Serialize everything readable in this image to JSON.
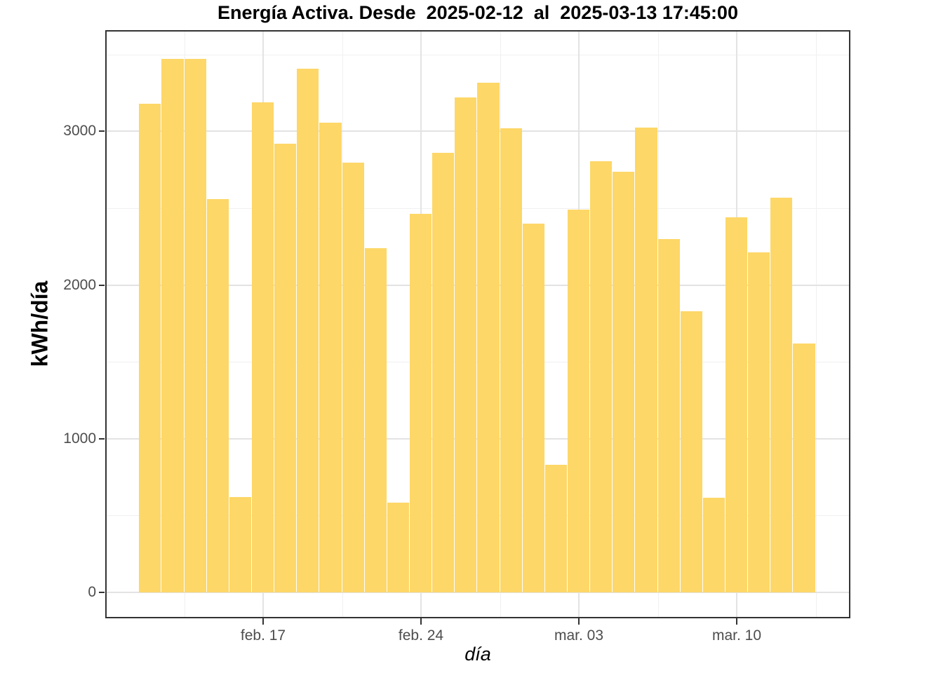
{
  "title": "Energía Activa. Desde  2025-02-12  al  2025-03-13 17:45:00",
  "colors": {
    "bar_fill": "#FDD767",
    "panel_border": "#333333",
    "grid_major": "#E3E3E3",
    "grid_minor": "#F0F0F0",
    "tick_label": "#4D4D4D",
    "title_text": "#000000",
    "background": "#FFFFFF"
  },
  "chart_data": {
    "type": "bar",
    "title": "Energía Activa. Desde  2025-02-12  al  2025-03-13 17:45:00",
    "xlabel": "día",
    "ylabel": "kWh/día",
    "legend_position": "none",
    "grid": true,
    "ylim": [
      0,
      3660
    ],
    "x": [
      "2025-02-12",
      "2025-02-13",
      "2025-02-14",
      "2025-02-15",
      "2025-02-16",
      "2025-02-17",
      "2025-02-18",
      "2025-02-19",
      "2025-02-20",
      "2025-02-21",
      "2025-02-22",
      "2025-02-23",
      "2025-02-24",
      "2025-02-25",
      "2025-02-26",
      "2025-02-27",
      "2025-02-28",
      "2025-03-01",
      "2025-03-02",
      "2025-03-03",
      "2025-03-04",
      "2025-03-05",
      "2025-03-06",
      "2025-03-07",
      "2025-03-08",
      "2025-03-09",
      "2025-03-10",
      "2025-03-11",
      "2025-03-12",
      "2025-03-13"
    ],
    "values": [
      3180,
      3470,
      3470,
      2560,
      620,
      3190,
      2920,
      3405,
      3055,
      2795,
      2240,
      585,
      2465,
      2860,
      3220,
      3315,
      3020,
      2400,
      830,
      2490,
      2805,
      2735,
      3025,
      2300,
      1830,
      615,
      2440,
      2210,
      2570,
      1620
    ],
    "y_axis": {
      "tick_values": [
        0,
        1000,
        2000,
        3000
      ],
      "tick_labels": [
        "0",
        "1000",
        "2000",
        "3000"
      ],
      "minor_gridline_values": [
        500,
        1500,
        2500,
        3500
      ]
    },
    "x_axis": {
      "tick_labels": [
        "feb. 17",
        "feb. 24",
        "mar. 03",
        "mar. 10"
      ],
      "tick_day_indices": [
        5,
        12,
        19,
        26
      ],
      "minor_gridline_day_indices": [
        1.5,
        8.5,
        15.5,
        22.5,
        29.5
      ]
    }
  }
}
